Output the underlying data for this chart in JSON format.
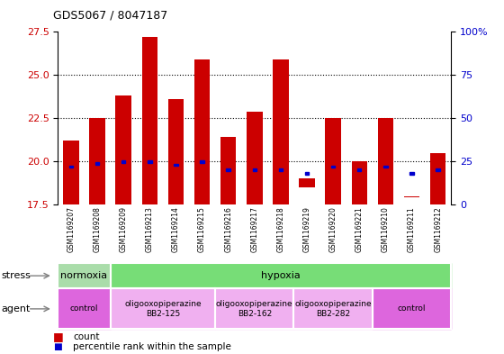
{
  "title": "GDS5067 / 8047187",
  "samples": [
    "GSM1169207",
    "GSM1169208",
    "GSM1169209",
    "GSM1169213",
    "GSM1169214",
    "GSM1169215",
    "GSM1169216",
    "GSM1169217",
    "GSM1169218",
    "GSM1169219",
    "GSM1169220",
    "GSM1169221",
    "GSM1169210",
    "GSM1169211",
    "GSM1169212"
  ],
  "bar_bottoms": [
    17.5,
    17.5,
    17.5,
    17.5,
    17.5,
    17.5,
    17.5,
    17.5,
    17.5,
    18.5,
    17.5,
    17.5,
    17.5,
    17.9,
    17.5
  ],
  "bar_tops": [
    21.2,
    22.5,
    23.8,
    27.2,
    23.6,
    25.9,
    21.4,
    22.9,
    25.9,
    19.0,
    22.5,
    20.0,
    22.5,
    18.0,
    20.5
  ],
  "blue_y": [
    19.7,
    19.9,
    20.0,
    20.0,
    19.8,
    20.0,
    19.5,
    19.5,
    19.5,
    19.3,
    19.7,
    19.5,
    19.7,
    19.3,
    19.5
  ],
  "bar_color": "#cc0000",
  "blue_color": "#0000cc",
  "ylim_left": [
    17.5,
    27.5
  ],
  "ylim_right": [
    0,
    100
  ],
  "yticks_left": [
    17.5,
    20.0,
    22.5,
    25.0,
    27.5
  ],
  "yticks_right": [
    0,
    25,
    50,
    75,
    100
  ],
  "yticklabels_right": [
    "0",
    "25",
    "50",
    "75",
    "100%"
  ],
  "dotted_lines": [
    20.0,
    22.5,
    25.0
  ],
  "stress_groups": [
    {
      "label": "normoxia",
      "start": 0,
      "end": 2,
      "color": "#aaddaa"
    },
    {
      "label": "hypoxia",
      "start": 2,
      "end": 15,
      "color": "#77dd77"
    }
  ],
  "agent_groups": [
    {
      "label": "control",
      "start": 0,
      "end": 2,
      "color": "#dd66dd"
    },
    {
      "label": "oligooxopiperazine\nBB2-125",
      "start": 2,
      "end": 6,
      "color": "#f0b0f0"
    },
    {
      "label": "oligooxopiperazine\nBB2-162",
      "start": 6,
      "end": 9,
      "color": "#f0b0f0"
    },
    {
      "label": "oligooxopiperazine\nBB2-282",
      "start": 9,
      "end": 12,
      "color": "#f0b0f0"
    },
    {
      "label": "control",
      "start": 12,
      "end": 15,
      "color": "#dd66dd"
    }
  ],
  "bar_width": 0.6,
  "axis_label_color_left": "#cc0000",
  "axis_label_color_right": "#0000cc",
  "plot_bg": "#ffffff",
  "tick_bg": "#dddddd"
}
